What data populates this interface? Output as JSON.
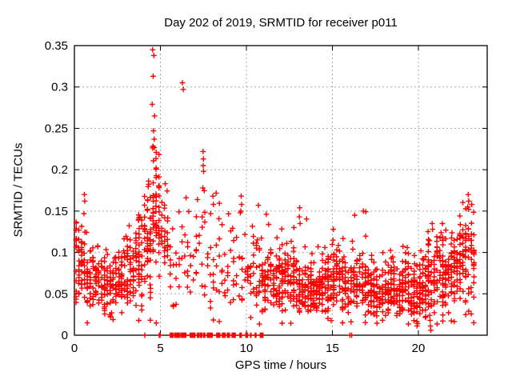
{
  "chart_data": {
    "type": "scatter",
    "title": "Day 202 of 2019, SRMTID for receiver p011",
    "xlabel": "GPS time / hours",
    "ylabel": "SRMTID / TECUs",
    "xlim": [
      0,
      24
    ],
    "ylim": [
      0,
      0.35
    ],
    "xticks": [
      {
        "v": 0,
        "label": "0"
      },
      {
        "v": 5,
        "label": "5"
      },
      {
        "v": 10,
        "label": "10"
      },
      {
        "v": 15,
        "label": "15"
      },
      {
        "v": 20,
        "label": "20"
      }
    ],
    "yticks": [
      {
        "v": 0,
        "label": "0"
      },
      {
        "v": 0.05,
        "label": "0.05"
      },
      {
        "v": 0.1,
        "label": "0.1"
      },
      {
        "v": 0.15,
        "label": "0.15"
      },
      {
        "v": 0.2,
        "label": "0.2"
      },
      {
        "v": 0.25,
        "label": "0.25"
      },
      {
        "v": 0.3,
        "label": "0.3"
      },
      {
        "v": 0.35,
        "label": "0.35"
      }
    ],
    "grid": true,
    "legend": "none",
    "marker": {
      "shape": "plus",
      "color": "#ff0000",
      "half_size": 3.4,
      "stroke_width": 1.4
    },
    "colors": {
      "grid": "#a8a8a8",
      "frame": "#000000",
      "text": "#000000",
      "background": "#ffffff"
    },
    "seed": 20190722,
    "columns_per_hour": 6,
    "band_bins": [
      [
        0.02,
        0.5,
        46,
        0.088,
        0.038,
        0.17
      ],
      [
        0.5,
        1.0,
        40,
        0.075,
        0.03,
        0.138
      ],
      [
        1.0,
        1.5,
        40,
        0.07,
        0.028,
        0.118
      ],
      [
        1.5,
        2.0,
        38,
        0.063,
        0.027,
        0.105
      ],
      [
        2.0,
        2.5,
        38,
        0.058,
        0.026,
        0.1
      ],
      [
        2.5,
        3.0,
        40,
        0.065,
        0.03,
        0.118
      ],
      [
        3.0,
        3.5,
        42,
        0.078,
        0.034,
        0.145
      ],
      [
        3.5,
        4.0,
        45,
        0.09,
        0.04,
        0.16
      ],
      [
        4.0,
        4.5,
        50,
        0.11,
        0.05,
        0.205
      ],
      [
        4.5,
        5.0,
        58,
        0.15,
        0.058,
        0.23
      ],
      [
        5.0,
        5.5,
        26,
        0.115,
        0.048,
        0.185
      ],
      [
        5.5,
        6.0,
        12,
        0.08,
        0.038,
        0.13
      ],
      [
        6.0,
        6.5,
        10,
        0.09,
        0.045,
        0.17
      ],
      [
        6.5,
        7.0,
        10,
        0.09,
        0.045,
        0.175
      ],
      [
        7.0,
        7.5,
        12,
        0.1,
        0.048,
        0.165
      ],
      [
        7.5,
        8.0,
        12,
        0.1,
        0.048,
        0.18
      ],
      [
        8.0,
        8.5,
        14,
        0.105,
        0.048,
        0.175
      ],
      [
        8.5,
        9.0,
        12,
        0.088,
        0.04,
        0.15
      ],
      [
        9.0,
        9.5,
        12,
        0.08,
        0.038,
        0.13
      ],
      [
        9.5,
        10.0,
        12,
        0.088,
        0.04,
        0.15
      ],
      [
        10.0,
        10.5,
        20,
        0.078,
        0.038,
        0.14
      ],
      [
        10.5,
        11.0,
        30,
        0.07,
        0.032,
        0.125
      ],
      [
        11.0,
        11.5,
        40,
        0.068,
        0.03,
        0.148
      ],
      [
        11.5,
        12.0,
        42,
        0.065,
        0.028,
        0.12
      ],
      [
        12.0,
        12.5,
        45,
        0.068,
        0.03,
        0.13
      ],
      [
        12.5,
        13.0,
        45,
        0.065,
        0.03,
        0.14
      ],
      [
        13.0,
        13.5,
        45,
        0.06,
        0.025,
        0.155
      ],
      [
        13.5,
        14.0,
        45,
        0.055,
        0.025,
        0.1
      ],
      [
        14.0,
        14.5,
        45,
        0.058,
        0.025,
        0.118
      ],
      [
        14.5,
        15.0,
        45,
        0.063,
        0.028,
        0.135
      ],
      [
        15.0,
        15.5,
        45,
        0.068,
        0.03,
        0.13
      ],
      [
        15.5,
        16.0,
        42,
        0.06,
        0.028,
        0.12
      ],
      [
        16.0,
        16.5,
        40,
        0.06,
        0.028,
        0.145
      ],
      [
        16.5,
        17.0,
        40,
        0.063,
        0.028,
        0.15
      ],
      [
        17.0,
        17.5,
        42,
        0.055,
        0.025,
        0.1
      ],
      [
        17.5,
        18.0,
        42,
        0.05,
        0.024,
        0.115
      ],
      [
        18.0,
        18.5,
        45,
        0.055,
        0.025,
        0.128
      ],
      [
        18.5,
        19.0,
        45,
        0.055,
        0.025,
        0.1
      ],
      [
        19.0,
        19.5,
        45,
        0.06,
        0.028,
        0.118
      ],
      [
        19.5,
        20.0,
        45,
        0.05,
        0.028,
        0.1
      ],
      [
        20.0,
        20.5,
        45,
        0.055,
        0.028,
        0.108
      ],
      [
        20.5,
        21.0,
        48,
        0.068,
        0.038,
        0.135
      ],
      [
        21.0,
        21.5,
        48,
        0.078,
        0.038,
        0.142
      ],
      [
        21.5,
        22.0,
        45,
        0.08,
        0.034,
        0.13
      ],
      [
        22.0,
        22.5,
        45,
        0.088,
        0.038,
        0.148
      ],
      [
        22.5,
        23.0,
        42,
        0.098,
        0.042,
        0.168
      ],
      [
        23.0,
        23.3,
        26,
        0.1,
        0.04,
        0.165
      ]
    ],
    "outliers": [
      [
        0.58,
        0.17
      ],
      [
        0.6,
        0.162
      ],
      [
        0.56,
        0.147
      ],
      [
        2.1,
        0.022
      ],
      [
        2.16,
        0.027
      ],
      [
        4.55,
        0.345
      ],
      [
        4.62,
        0.338
      ],
      [
        4.58,
        0.313
      ],
      [
        4.52,
        0.279
      ],
      [
        4.66,
        0.265
      ],
      [
        4.6,
        0.247
      ],
      [
        4.64,
        0.237
      ],
      [
        4.56,
        0.228
      ],
      [
        5.28,
        0.183
      ],
      [
        6.28,
        0.305
      ],
      [
        6.33,
        0.297
      ],
      [
        7.48,
        0.222
      ],
      [
        7.5,
        0.213
      ],
      [
        7.49,
        0.205
      ],
      [
        7.51,
        0.198
      ],
      [
        7.47,
        0.178
      ],
      [
        8.05,
        0.168
      ],
      [
        8.08,
        0.158
      ],
      [
        9.7,
        0.168
      ],
      [
        9.72,
        0.158
      ],
      [
        9.68,
        0.15
      ],
      [
        10.7,
        0.157
      ],
      [
        13.1,
        0.154
      ],
      [
        13.08,
        0.143
      ],
      [
        13.12,
        0.135
      ],
      [
        15.05,
        0.128
      ],
      [
        16.3,
        0.145
      ],
      [
        16.8,
        0.15
      ],
      [
        19.95,
        0.014
      ],
      [
        20.66,
        0.024
      ],
      [
        20.68,
        0.018
      ],
      [
        20.7,
        0.011
      ],
      [
        20.72,
        0.006
      ],
      [
        20.8,
        0.135
      ],
      [
        20.83,
        0.128
      ],
      [
        22.9,
        0.17
      ],
      [
        22.93,
        0.162
      ],
      [
        22.87,
        0.155
      ],
      [
        23.1,
        0.158
      ]
    ],
    "zero_runs": [
      [
        5.55,
        5.78
      ],
      [
        5.83,
        6.12
      ],
      [
        6.17,
        6.55
      ],
      [
        6.72,
        7.02
      ],
      [
        7.15,
        7.42
      ],
      [
        7.47,
        7.6
      ],
      [
        7.72,
        8.02
      ],
      [
        8.27,
        8.47
      ],
      [
        8.6,
        8.77
      ],
      [
        8.87,
        9.02
      ],
      [
        9.12,
        9.37
      ],
      [
        9.6,
        9.72
      ],
      [
        9.95,
        10.07
      ],
      [
        10.22,
        10.32
      ],
      [
        10.5,
        10.57
      ],
      [
        10.77,
        10.97
      ]
    ],
    "zero_singles": [
      4.1,
      4.93,
      4.98,
      16.02,
      16.12
    ]
  }
}
